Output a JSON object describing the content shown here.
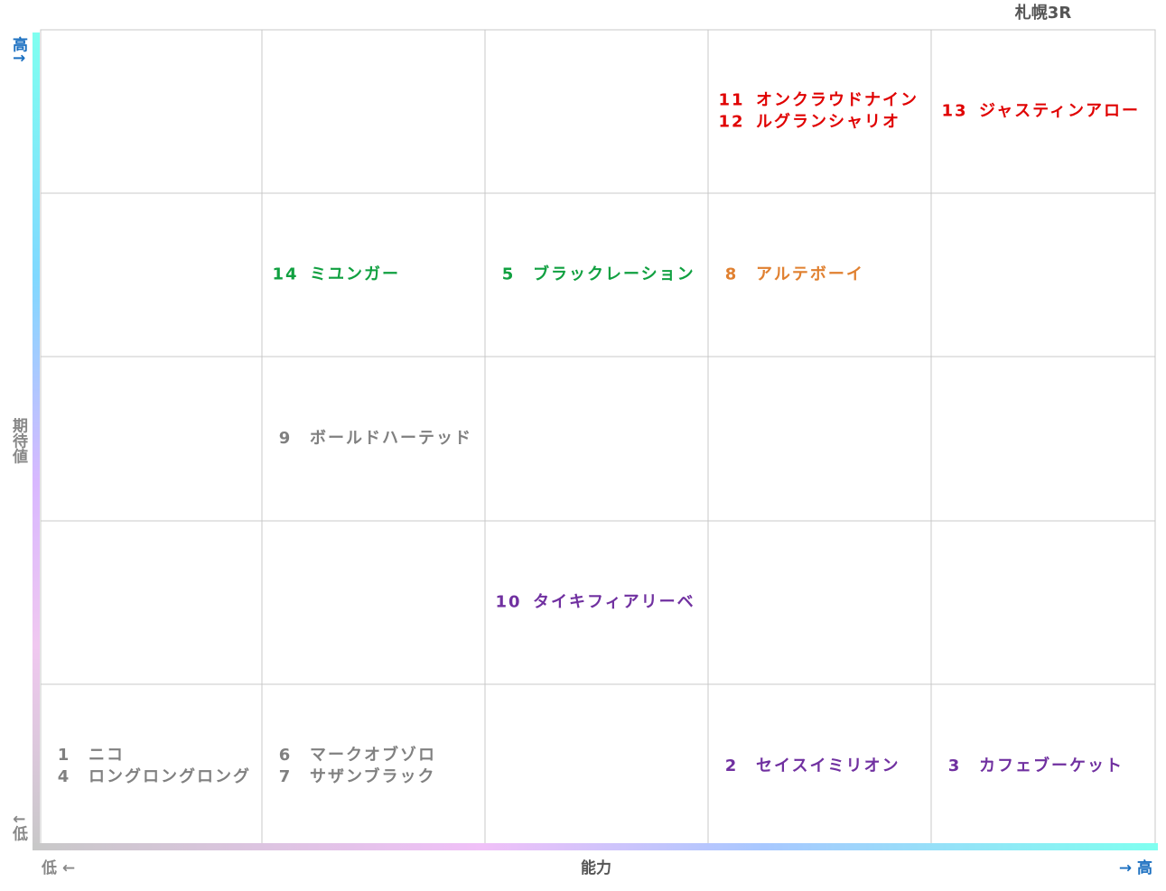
{
  "title": "札幌3R",
  "y_axis": {
    "high": "高↑",
    "label": "期待値",
    "low": "↓低"
  },
  "x_axis": {
    "low": "低 ←",
    "label": "能力",
    "high": "→ 高"
  },
  "grid": [
    [
      null,
      null,
      null,
      {
        "color": "#e00000",
        "entries": [
          {
            "number": "11",
            "name": "オンクラウドナイン"
          },
          {
            "number": "12",
            "name": "ルグランシャリオ"
          }
        ]
      },
      {
        "color": "#e00000",
        "entries": [
          {
            "number": "13",
            "name": "ジャスティンアロー"
          }
        ]
      }
    ],
    [
      null,
      {
        "color": "#10a040",
        "entries": [
          {
            "number": "14",
            "name": "ミユンガー"
          }
        ]
      },
      {
        "color": "#10a040",
        "entries": [
          {
            "number": "5",
            "name": "ブラックレーション"
          }
        ]
      },
      {
        "color": "#e08030",
        "entries": [
          {
            "number": "8",
            "name": "アルテボーイ"
          }
        ]
      },
      null
    ],
    [
      null,
      {
        "color": "#808080",
        "entries": [
          {
            "number": "9",
            "name": "ボールドハーテッド"
          }
        ]
      },
      null,
      null,
      null
    ],
    [
      null,
      null,
      {
        "color": "#7030a0",
        "entries": [
          {
            "number": "10",
            "name": "タイキフィアリーベ"
          }
        ]
      },
      null,
      null
    ],
    [
      {
        "color": "#808080",
        "entries": [
          {
            "number": "1",
            "name": "ニコ"
          },
          {
            "number": "4",
            "name": "ロングロングロング"
          }
        ]
      },
      {
        "color": "#808080",
        "entries": [
          {
            "number": "6",
            "name": "マークオブゾロ"
          },
          {
            "number": "7",
            "name": "サザンブラック"
          }
        ]
      },
      null,
      {
        "color": "#7030a0",
        "entries": [
          {
            "number": "2",
            "name": "セイスイミリオン"
          }
        ]
      },
      {
        "color": "#7030a0",
        "entries": [
          {
            "number": "3",
            "name": "カフェブーケット"
          }
        ]
      }
    ]
  ]
}
